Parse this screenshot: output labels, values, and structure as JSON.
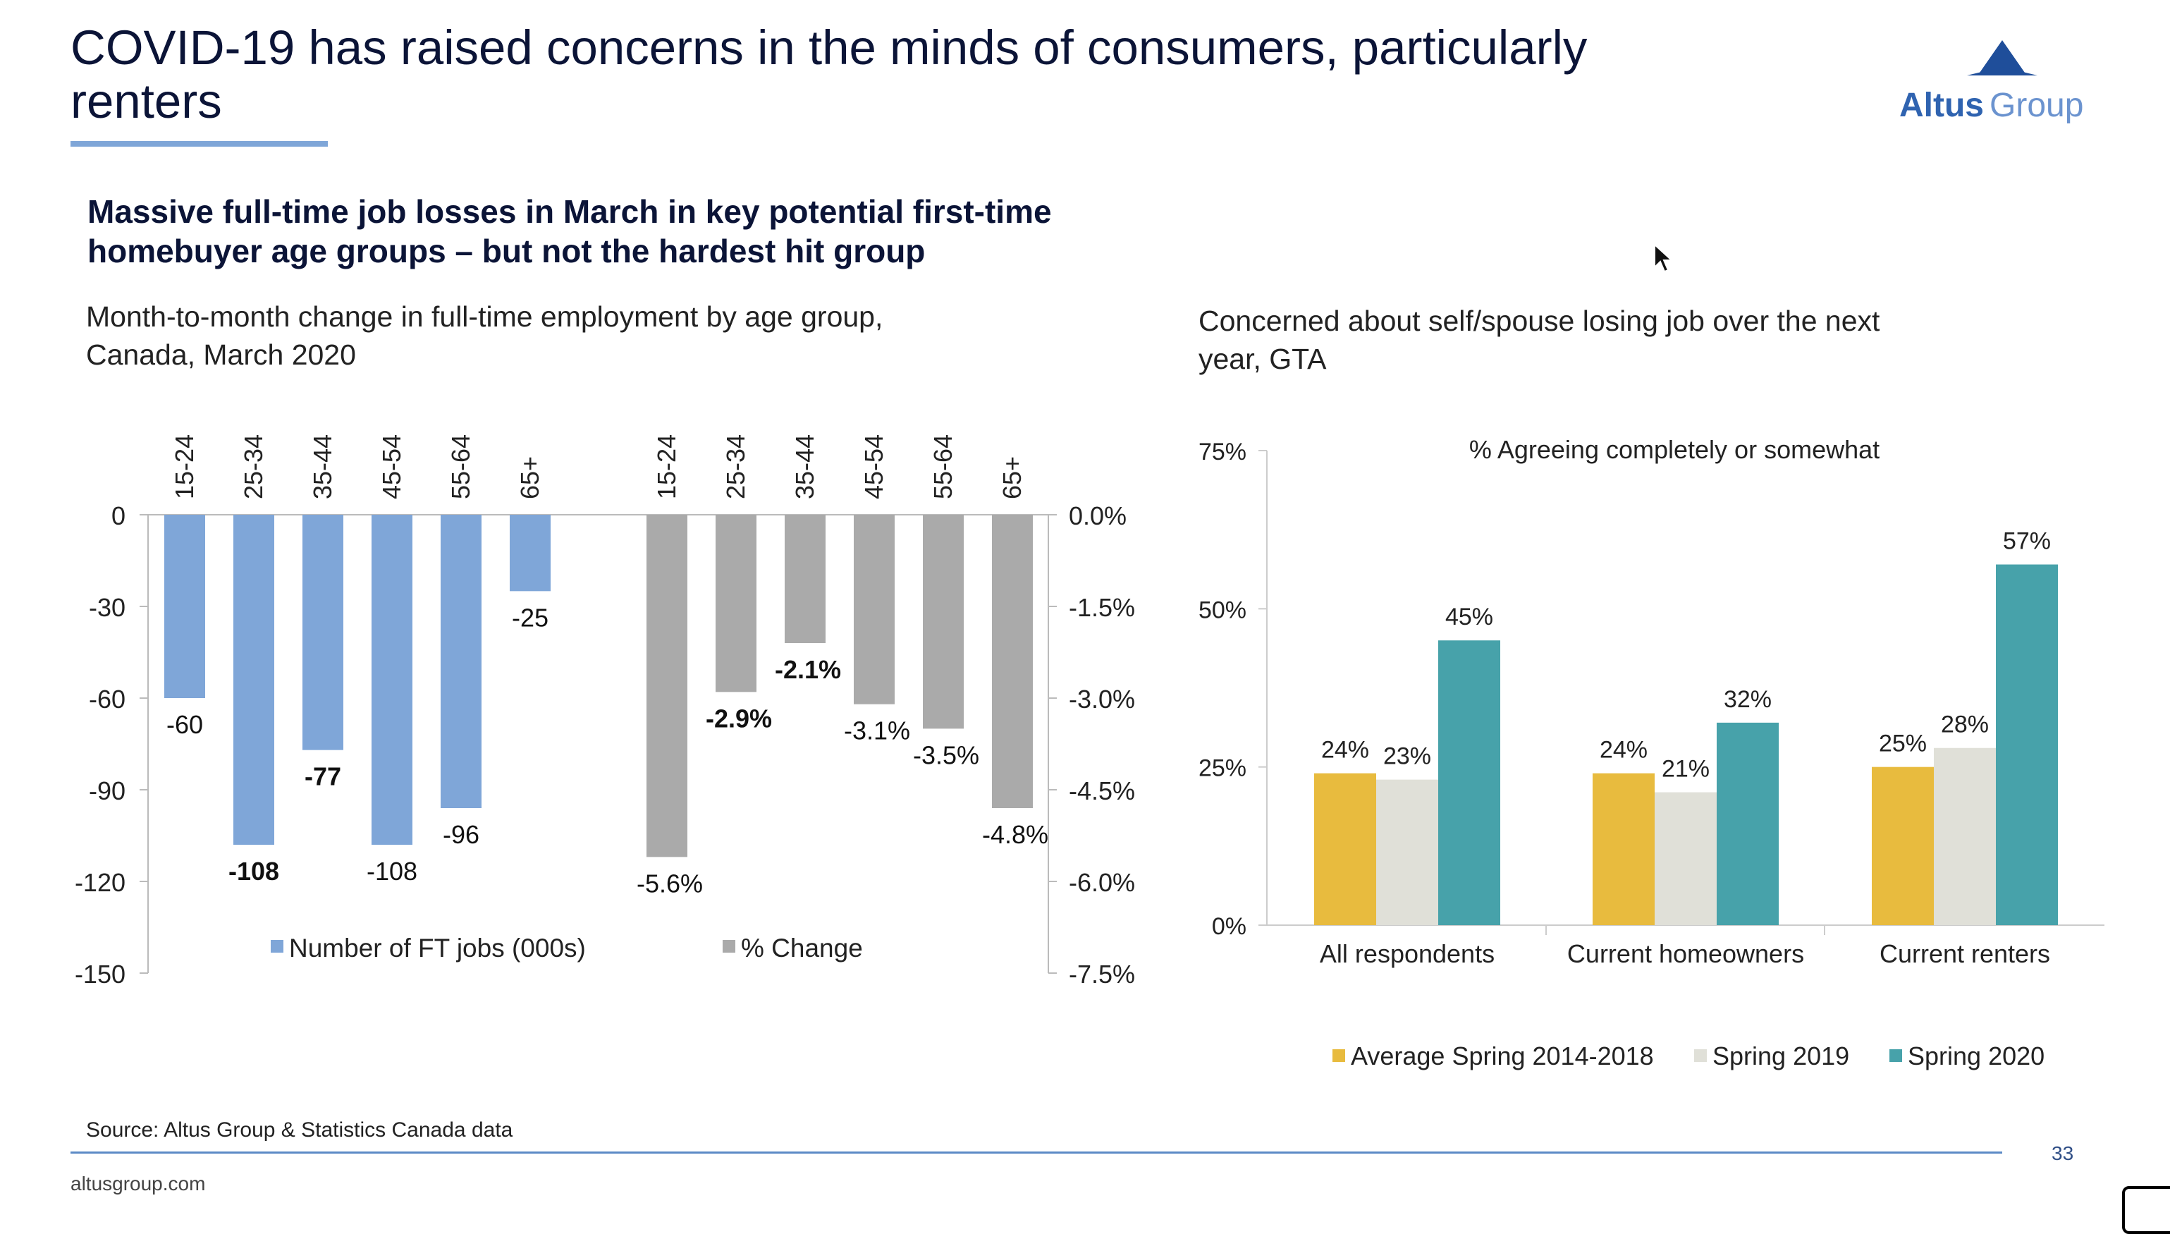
{
  "slide": {
    "title": "COVID-19 has raised concerns in the minds of consumers, particularly renters",
    "subtitle": "Massive full-time job losses in March in key potential first-time homebuyer age groups – but not the hardest hit group",
    "source": "Source: Altus Group & Statistics Canada data",
    "page_number": "33",
    "footer_url": "altusgroup.com",
    "logo": {
      "text_bold": "Altus",
      "text_light": "Group",
      "mark_color": "#1f4e9a",
      "text_color": "#2f63b0"
    }
  },
  "left_chart_desc": "Month-to-month change in full-time employment by age group, Canada, March 2020",
  "right_chart_desc": "Concerned about self/spouse losing job over the next year, GTA",
  "chart_data": [
    {
      "type": "bar",
      "categories": [
        "15-24",
        "25-34",
        "35-44",
        "45-54",
        "55-64",
        "65+"
      ],
      "series": [
        {
          "name": "Number of FT jobs (000s)",
          "axis": "left",
          "color": "#7fa6d8",
          "values": [
            -60,
            -108,
            -77,
            -108,
            -96,
            -25
          ],
          "labels": [
            "-60",
            "-108",
            "-77",
            "-108",
            "-96",
            "-25"
          ],
          "bold": [
            false,
            true,
            true,
            false,
            false,
            false
          ]
        },
        {
          "name": "% Change",
          "axis": "right",
          "color": "#aaaaaa",
          "values": [
            -5.6,
            -2.9,
            -2.1,
            -3.1,
            -3.5,
            -4.8
          ],
          "labels": [
            "-5.6%",
            "-2.9%",
            "-2.1%",
            "-3.1%",
            "-3.5%",
            "-4.8%"
          ],
          "bold": [
            false,
            true,
            true,
            false,
            false,
            false
          ]
        }
      ],
      "y_left": {
        "ylim": [
          -150,
          0
        ],
        "ticks": [
          "0",
          "-30",
          "-60",
          "-90",
          "-120",
          "-150"
        ]
      },
      "y_right": {
        "ylim": [
          -7.5,
          0
        ],
        "ticks": [
          "0.0%",
          "-1.5%",
          "-3.0%",
          "-4.5%",
          "-6.0%",
          "-7.5%"
        ]
      },
      "legend": "bottom",
      "grid": false
    },
    {
      "type": "bar",
      "title": "% Agreeing completely or somewhat",
      "categories": [
        "All respondents",
        "Current homeowners",
        "Current renters"
      ],
      "series": [
        {
          "name": "Average Spring 2014-2018",
          "color": "#e8bb3e",
          "values": [
            24,
            24,
            25
          ],
          "labels": [
            "24%",
            "24%",
            "25%"
          ]
        },
        {
          "name": "Spring 2019",
          "color": "#e0e0d8",
          "values": [
            23,
            21,
            28
          ],
          "labels": [
            "23%",
            "21%",
            "28%"
          ]
        },
        {
          "name": "Spring 2020",
          "color": "#47a2aa",
          "values": [
            45,
            32,
            57
          ],
          "labels": [
            "45%",
            "32%",
            "57%"
          ]
        }
      ],
      "ylim": [
        0,
        75
      ],
      "y_ticks": [
        "0%",
        "25%",
        "50%",
        "75%"
      ],
      "legend": "bottom",
      "grid": false
    }
  ]
}
